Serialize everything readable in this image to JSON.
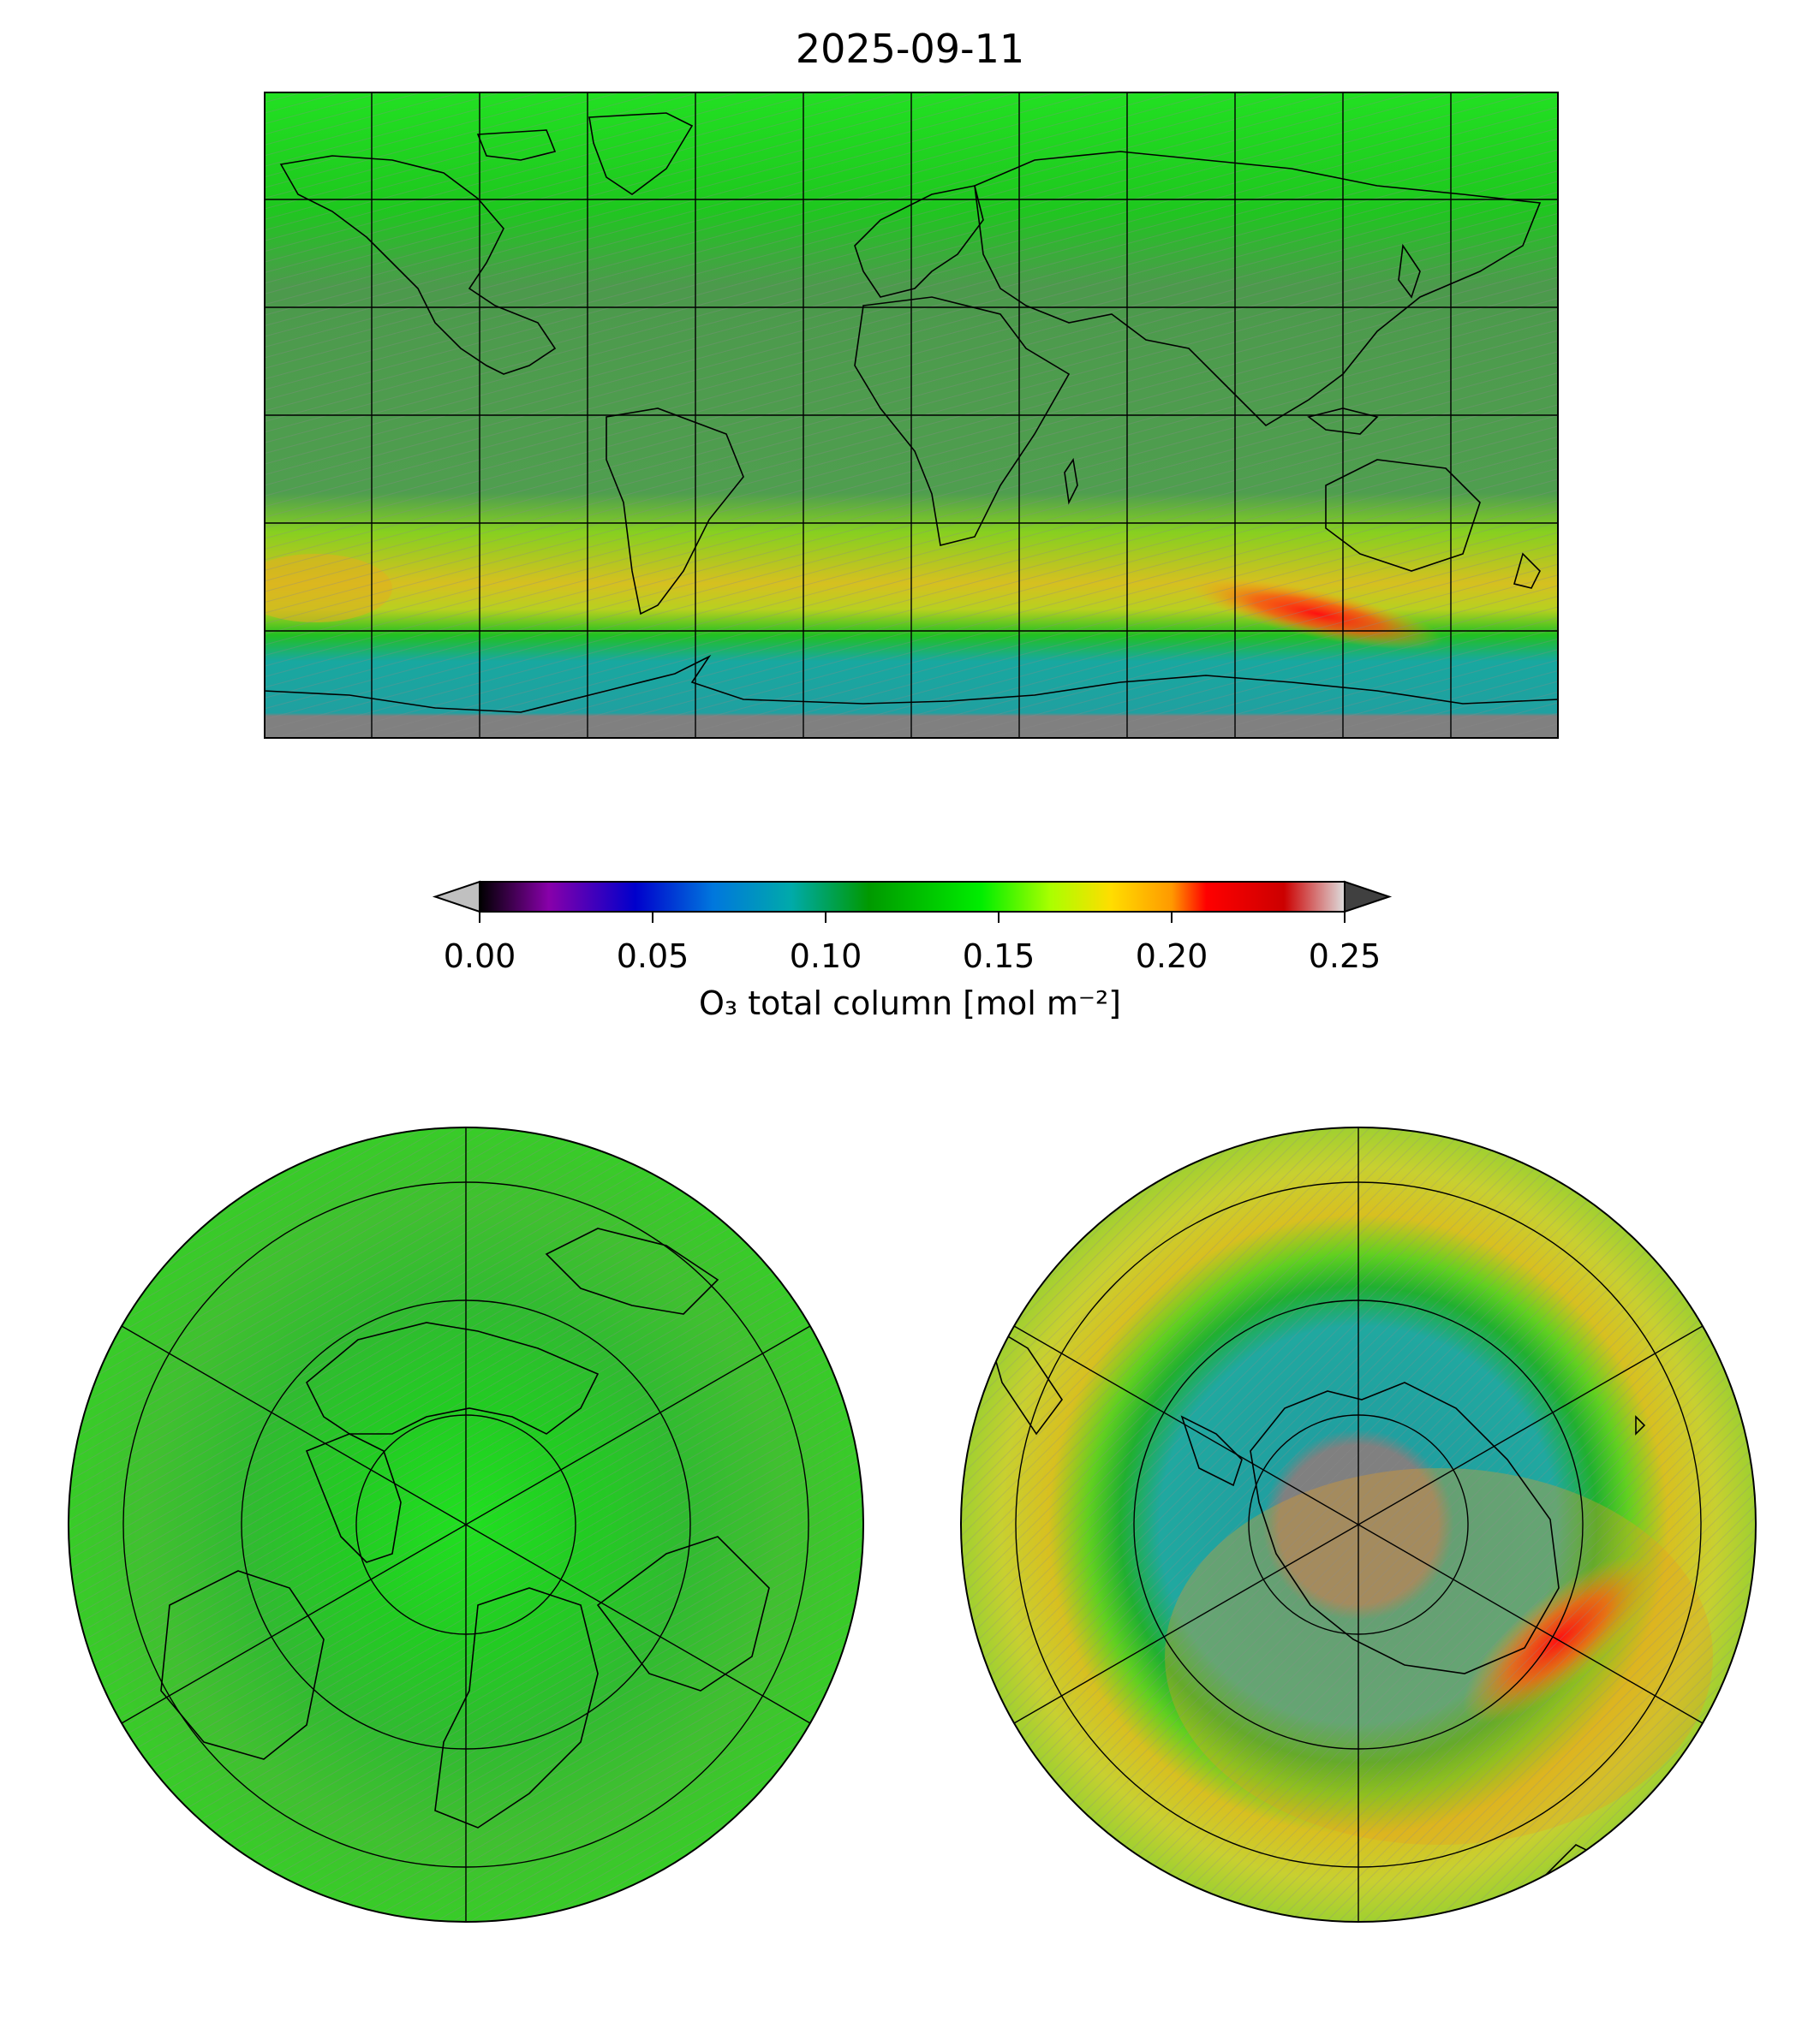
{
  "figure": {
    "title": "2025-09-11",
    "colorbar": {
      "label": "O₃ total column [mol m⁻²]",
      "ticks": [
        "0.00",
        "0.05",
        "0.10",
        "0.15",
        "0.20",
        "0.25"
      ],
      "range": [
        0.0,
        0.25
      ],
      "extend": "both",
      "colors": [
        "#000000",
        "#8800aa",
        "#0000cc",
        "#0077dd",
        "#00aaaa",
        "#009900",
        "#00ee00",
        "#aaff00",
        "#ffdd00",
        "#ff9900",
        "#ff0000",
        "#cc0000",
        "#dddddd"
      ],
      "under_color": "#c0c0c0",
      "over_color": "#404040",
      "missing_color": "#808080"
    },
    "panels": [
      {
        "name": "global",
        "projection": "plate-carree"
      },
      {
        "name": "north-polar",
        "projection": "north-polar-stereographic"
      },
      {
        "name": "south-polar",
        "projection": "south-polar-stereographic"
      }
    ]
  }
}
